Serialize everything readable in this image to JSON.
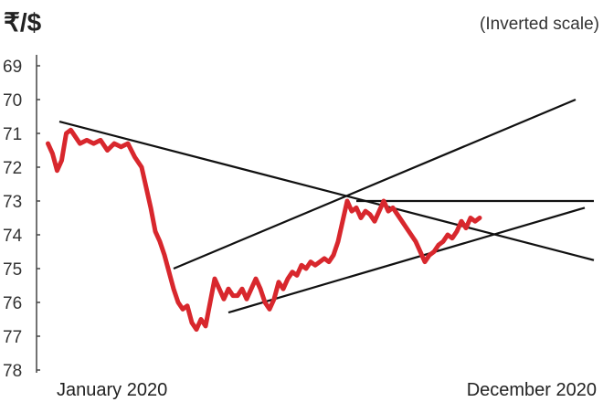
{
  "chart_data": {
    "type": "line",
    "title": "₹/$",
    "subtitle": "(Inverted scale)",
    "y_axis": {
      "inverted": true,
      "ylim": [
        69,
        78
      ],
      "ticks": [
        "69",
        "70",
        "71",
        "72",
        "73",
        "74",
        "75",
        "76",
        "77",
        "78"
      ]
    },
    "x_axis": {
      "labels": [
        "January 2020",
        "December 2020"
      ],
      "xlim": [
        0,
        12
      ]
    },
    "grid": false,
    "series": [
      {
        "color": "#d8272d",
        "points": [
          [
            0.05,
            71.3
          ],
          [
            0.15,
            71.6
          ],
          [
            0.25,
            72.1
          ],
          [
            0.35,
            71.8
          ],
          [
            0.45,
            71.0
          ],
          [
            0.55,
            70.9
          ],
          [
            0.65,
            71.1
          ],
          [
            0.75,
            71.3
          ],
          [
            0.9,
            71.2
          ],
          [
            1.05,
            71.3
          ],
          [
            1.2,
            71.2
          ],
          [
            1.35,
            71.5
          ],
          [
            1.5,
            71.3
          ],
          [
            1.65,
            71.4
          ],
          [
            1.8,
            71.3
          ],
          [
            1.95,
            71.7
          ],
          [
            2.1,
            72.0
          ],
          [
            2.2,
            72.6
          ],
          [
            2.3,
            73.2
          ],
          [
            2.4,
            73.9
          ],
          [
            2.5,
            74.2
          ],
          [
            2.6,
            74.6
          ],
          [
            2.7,
            75.1
          ],
          [
            2.8,
            75.6
          ],
          [
            2.9,
            76.0
          ],
          [
            3.0,
            76.2
          ],
          [
            3.1,
            76.1
          ],
          [
            3.2,
            76.6
          ],
          [
            3.3,
            76.8
          ],
          [
            3.4,
            76.5
          ],
          [
            3.5,
            76.7
          ],
          [
            3.6,
            76.0
          ],
          [
            3.7,
            75.3
          ],
          [
            3.8,
            75.6
          ],
          [
            3.9,
            75.9
          ],
          [
            4.0,
            75.6
          ],
          [
            4.1,
            75.8
          ],
          [
            4.2,
            75.8
          ],
          [
            4.3,
            75.6
          ],
          [
            4.4,
            75.9
          ],
          [
            4.5,
            75.6
          ],
          [
            4.6,
            75.3
          ],
          [
            4.7,
            75.6
          ],
          [
            4.8,
            76.0
          ],
          [
            4.9,
            76.2
          ],
          [
            5.0,
            75.9
          ],
          [
            5.1,
            75.4
          ],
          [
            5.2,
            75.6
          ],
          [
            5.3,
            75.3
          ],
          [
            5.4,
            75.1
          ],
          [
            5.5,
            75.2
          ],
          [
            5.6,
            74.9
          ],
          [
            5.7,
            75.0
          ],
          [
            5.8,
            74.8
          ],
          [
            5.9,
            74.9
          ],
          [
            6.0,
            74.8
          ],
          [
            6.1,
            74.7
          ],
          [
            6.2,
            74.8
          ],
          [
            6.3,
            74.6
          ],
          [
            6.4,
            74.2
          ],
          [
            6.5,
            73.6
          ],
          [
            6.6,
            73.0
          ],
          [
            6.7,
            73.3
          ],
          [
            6.8,
            73.2
          ],
          [
            6.9,
            73.5
          ],
          [
            7.0,
            73.3
          ],
          [
            7.1,
            73.4
          ],
          [
            7.2,
            73.6
          ],
          [
            7.3,
            73.3
          ],
          [
            7.4,
            73.0
          ],
          [
            7.5,
            73.3
          ],
          [
            7.6,
            73.2
          ],
          [
            7.7,
            73.4
          ],
          [
            7.8,
            73.6
          ],
          [
            7.9,
            73.8
          ],
          [
            8.0,
            74.0
          ],
          [
            8.1,
            74.2
          ],
          [
            8.2,
            74.5
          ],
          [
            8.3,
            74.8
          ],
          [
            8.4,
            74.6
          ],
          [
            8.5,
            74.5
          ],
          [
            8.6,
            74.3
          ],
          [
            8.7,
            74.2
          ],
          [
            8.8,
            74.0
          ],
          [
            8.9,
            74.1
          ],
          [
            9.0,
            73.9
          ],
          [
            9.1,
            73.6
          ],
          [
            9.2,
            73.8
          ],
          [
            9.3,
            73.5
          ],
          [
            9.4,
            73.6
          ],
          [
            9.5,
            73.5
          ]
        ]
      }
    ],
    "trendlines": [
      {
        "from": [
          0.3,
          70.65
        ],
        "to": [
          12.0,
          74.75
        ]
      },
      {
        "from": [
          6.8,
          73.0
        ],
        "to": [
          12.0,
          73.0
        ]
      },
      {
        "from": [
          2.8,
          75.0
        ],
        "to": [
          11.6,
          70.0
        ]
      },
      {
        "from": [
          4.0,
          76.3
        ],
        "to": [
          11.8,
          73.2
        ]
      }
    ]
  }
}
